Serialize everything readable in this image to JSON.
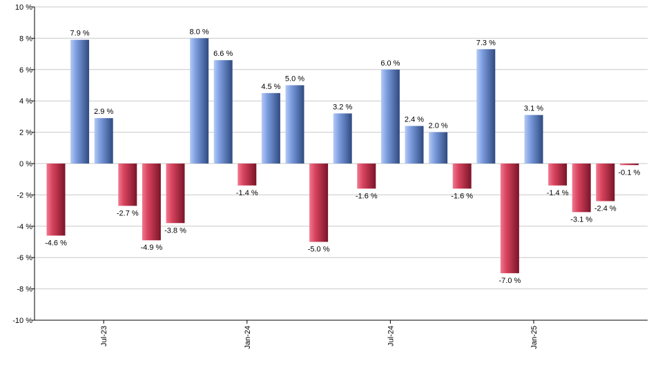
{
  "chart_data": {
    "type": "bar",
    "title": "",
    "xlabel": "",
    "ylabel": "",
    "ylim": [
      -10,
      10
    ],
    "yticks": [
      -10,
      -8,
      -6,
      -4,
      -2,
      0,
      2,
      4,
      6,
      8,
      10
    ],
    "ytick_labels": [
      "-10 %",
      "-8 %",
      "-6 %",
      "-4 %",
      "-2 %",
      "0 %",
      "2 %",
      "4 %",
      "6 %",
      "8 %",
      "10 %"
    ],
    "grid": true,
    "x_tick_labels": [
      {
        "index": 2,
        "label": "Jul-23"
      },
      {
        "index": 8,
        "label": "Jan-24"
      },
      {
        "index": 14,
        "label": "Jul-24"
      },
      {
        "index": 20,
        "label": "Jan-25"
      }
    ],
    "values": [
      -4.6,
      7.9,
      2.9,
      -2.7,
      -4.9,
      -3.8,
      8.0,
      6.6,
      -1.4,
      4.5,
      5.0,
      -5.0,
      3.2,
      -1.6,
      6.0,
      2.4,
      2.0,
      -1.6,
      7.3,
      -7.0,
      3.1,
      -1.4,
      -3.1,
      -2.4,
      -0.1
    ],
    "value_labels": [
      "-4.6 %",
      "7.9 %",
      "2.9 %",
      "-2.7 %",
      "-4.9 %",
      "-3.8 %",
      "8.0 %",
      "6.6 %",
      "-1.4 %",
      "4.5 %",
      "5.0 %",
      "-5.0 %",
      "3.2 %",
      "-1.6 %",
      "6.0 %",
      "2.4 %",
      "2.0 %",
      "-1.6 %",
      "7.3 %",
      "-7.0 %",
      "3.1 %",
      "-1.4 %",
      "-3.1 %",
      "-2.4 %",
      "-0.1 %"
    ],
    "colors": {
      "positive": "#7d9ee0",
      "positive_dark": "#2f4a80",
      "positive_light": "#b6cbf5",
      "negative": "#d9445f",
      "negative_dark": "#7a1428",
      "negative_light": "#f07a90",
      "grid": "#c8c8c8",
      "axis": "#000000",
      "text": "#000000"
    }
  }
}
